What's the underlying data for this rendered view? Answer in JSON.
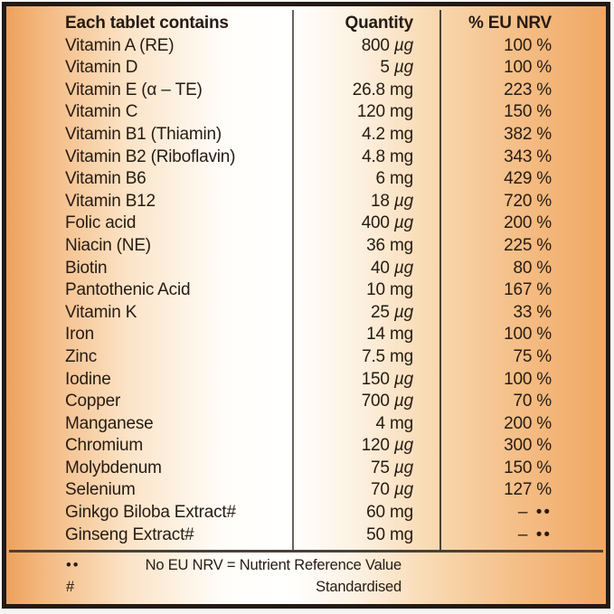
{
  "colors": {
    "border": "#231a13",
    "text": "#261b12",
    "divider": "#4a4038",
    "orange_left": "#eea15c",
    "orange_right": "#f0a763",
    "center_white": "#ffffff"
  },
  "table": {
    "headers": {
      "contains": "Each tablet contains",
      "quantity": "Quantity",
      "nrv": "% EU NRV"
    },
    "rows": [
      {
        "name": "Vitamin A (RE)",
        "qty_value": "800",
        "qty_unit": "µg",
        "nrv": "100 %"
      },
      {
        "name": "Vitamin D",
        "qty_value": "5",
        "qty_unit": "µg",
        "nrv": "100 %"
      },
      {
        "name": "Vitamin E (α – TE)",
        "qty_value": "26.8",
        "qty_unit": "mg",
        "nrv": "223 %"
      },
      {
        "name": "Vitamin C",
        "qty_value": "120",
        "qty_unit": "mg",
        "nrv": "150 %"
      },
      {
        "name": "Vitamin B1 (Thiamin)",
        "qty_value": "4.2",
        "qty_unit": "mg",
        "nrv": "382 %"
      },
      {
        "name": "Vitamin B2 (Riboflavin)",
        "qty_value": "4.8",
        "qty_unit": "mg",
        "nrv": "343 %"
      },
      {
        "name": "Vitamin B6",
        "qty_value": "6",
        "qty_unit": "mg",
        "nrv": "429 %"
      },
      {
        "name": "Vitamin B12",
        "qty_value": "18",
        "qty_unit": "µg",
        "nrv": "720 %"
      },
      {
        "name": "Folic acid",
        "qty_value": "400",
        "qty_unit": "µg",
        "nrv": "200 %"
      },
      {
        "name": "Niacin (NE)",
        "qty_value": "36",
        "qty_unit": "mg",
        "nrv": "225 %"
      },
      {
        "name": "Biotin",
        "qty_value": "40",
        "qty_unit": "µg",
        "nrv": "80 %"
      },
      {
        "name": "Pantothenic Acid",
        "qty_value": "10",
        "qty_unit": "mg",
        "nrv": "167 %"
      },
      {
        "name": "Vitamin K",
        "qty_value": "25",
        "qty_unit": "µg",
        "nrv": "33 %"
      },
      {
        "name": "Iron",
        "qty_value": "14",
        "qty_unit": "mg",
        "nrv": "100 %"
      },
      {
        "name": "Zinc",
        "qty_value": "7.5",
        "qty_unit": "mg",
        "nrv": "75 %"
      },
      {
        "name": "Iodine",
        "qty_value": "150",
        "qty_unit": "µg",
        "nrv": "100 %"
      },
      {
        "name": "Copper",
        "qty_value": "700",
        "qty_unit": "µg",
        "nrv": "70 %"
      },
      {
        "name": "Manganese",
        "qty_value": "4",
        "qty_unit": "mg",
        "nrv": "200 %"
      },
      {
        "name": "Chromium",
        "qty_value": "120",
        "qty_unit": "µg",
        "nrv": "300 %"
      },
      {
        "name": "Molybdenum",
        "qty_value": "75",
        "qty_unit": "µg",
        "nrv": "150 %"
      },
      {
        "name": "Selenium",
        "qty_value": "70",
        "qty_unit": "µg",
        "nrv": "127 %"
      },
      {
        "name": "Ginkgo Biloba Extract#",
        "qty_value": "60",
        "qty_unit": "mg",
        "nrv": "– ••"
      },
      {
        "name": "Ginseng Extract#",
        "qty_value": "50",
        "qty_unit": "mg",
        "nrv": "– ••"
      }
    ]
  },
  "footnotes": [
    {
      "marker": "••",
      "text": "No EU NRV = Nutrient Reference Value"
    },
    {
      "marker": "#",
      "text": "Standardised"
    }
  ]
}
